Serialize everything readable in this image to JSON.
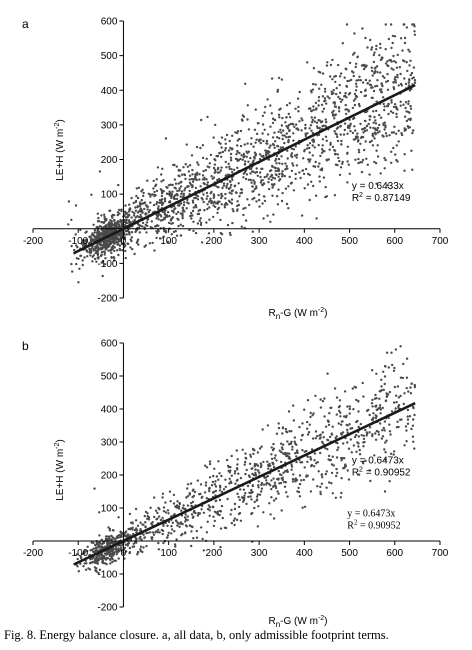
{
  "caption": "Fig. 8. Energy balance closure. a, all data, b, only admissible footprint terms.",
  "chart_data": [
    {
      "type": "scatter",
      "panel_label": "a",
      "xlabel_main": "R",
      "xlabel_sub": "n",
      "xlabel_rest": "-G (W m",
      "xlabel_sup": "-2",
      "xlabel_close": ")",
      "ylabel_main": "LE+H (W m",
      "ylabel_sup": "-2",
      "ylabel_close": ")",
      "xlim": [
        -200,
        700
      ],
      "ylim": [
        -200,
        600
      ],
      "xticks": [
        -200,
        -100,
        0,
        100,
        200,
        300,
        400,
        500,
        600,
        700
      ],
      "yticks": [
        -200,
        -100,
        0,
        100,
        200,
        300,
        400,
        500,
        600
      ],
      "regression_slope": 0.6433,
      "regression_x_range": [
        -110,
        645
      ],
      "annotations": [
        {
          "line1": "y = 0.6433x",
          "line2_prefix": "R",
          "line2_sup": "2",
          "line2_rest": " = 0.87149",
          "font": "sans",
          "x": 505,
          "y": 115
        }
      ],
      "point_color": "#4a4a4a",
      "line_color": "#1a1a1a",
      "n_points": 2200,
      "scatter_spread": 1.25,
      "seed": 11
    },
    {
      "type": "scatter",
      "panel_label": "b",
      "xlabel_main": "R",
      "xlabel_sub": "n",
      "xlabel_rest": "-G (W m",
      "xlabel_sup": "-2",
      "xlabel_close": ")",
      "ylabel_main": "LE+H (W m",
      "ylabel_sup": "-2",
      "ylabel_close": ")",
      "xlim": [
        -200,
        700
      ],
      "ylim": [
        -200,
        600
      ],
      "xticks": [
        -200,
        -100,
        0,
        100,
        200,
        300,
        400,
        500,
        600,
        700
      ],
      "yticks": [
        -200,
        -100,
        0,
        100,
        200,
        300,
        400,
        500,
        600
      ],
      "regression_slope": 0.6473,
      "regression_x_range": [
        -110,
        645
      ],
      "annotations": [
        {
          "line1": "y = 0.6473x",
          "line2_prefix": "R",
          "line2_sup": "2",
          "line2_rest": " = 0.90952",
          "font": "sans",
          "x": 505,
          "y": 235
        },
        {
          "line1": "y = 0.6473x",
          "line2_prefix": "R",
          "line2_sup": "2",
          "line2_rest": " = 0.90952",
          "font": "serif",
          "x": 495,
          "y": 75
        }
      ],
      "point_color": "#4a4a4a",
      "line_color": "#1a1a1a",
      "n_points": 1300,
      "scatter_spread": 1.0,
      "seed": 29
    }
  ]
}
